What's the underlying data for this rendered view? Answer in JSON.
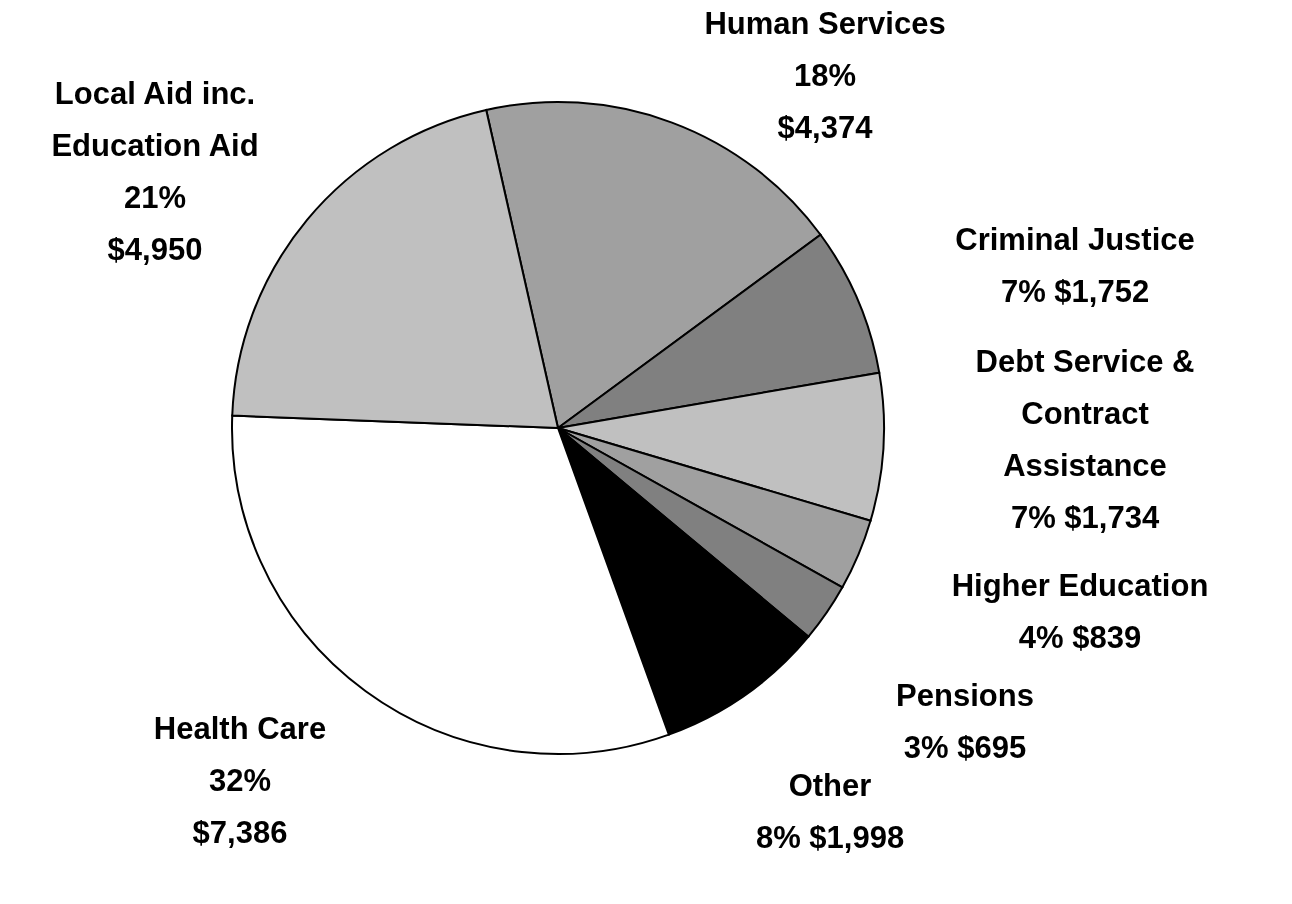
{
  "chart_data": {
    "type": "pie",
    "categories": [
      "Human Services",
      "Criminal Justice",
      "Debt Service &\nContract\nAssistance",
      "Higher Education",
      "Pensions",
      "Other",
      "Health Care",
      "Local Aid inc.\nEducation Aid"
    ],
    "values": [
      4374,
      1752,
      1734,
      839,
      695,
      1998,
      7386,
      4950
    ],
    "value_labels": [
      "18%\n$4,374",
      "7%      $1,752",
      "7%    $1,734",
      "4%    $839",
      "3%       $695",
      "8%    $1,998",
      "32%\n$7,386",
      "21%\n$4,950"
    ],
    "colors": [
      "#a0a0a0",
      "#808080",
      "#c0c0c0",
      "#a0a0a0",
      "#808080",
      "#000000",
      "#ffffff",
      "#c0c0c0"
    ]
  }
}
